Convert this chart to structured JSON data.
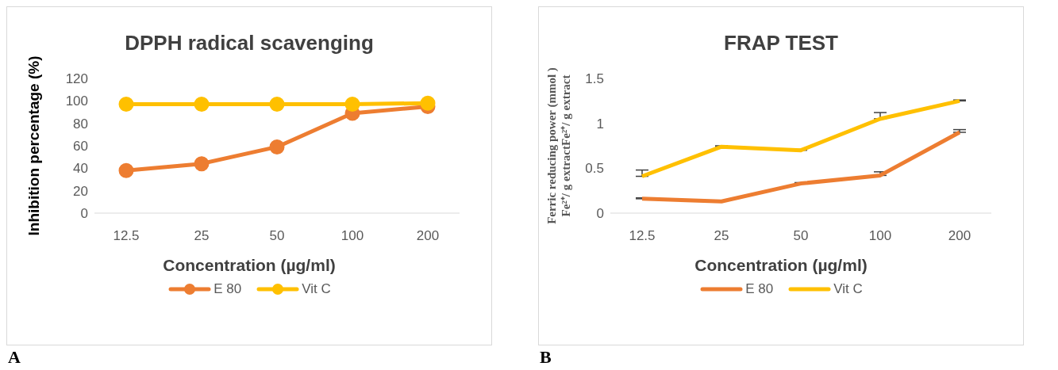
{
  "chart_data": [
    {
      "type": "line",
      "title": "DPPH radical scavenging",
      "xlabel": "Concentration (µg/ml)",
      "ylabel": "Inhibition percentage (%)",
      "categories": [
        "12.5",
        "25",
        "50",
        "100",
        "200"
      ],
      "series": [
        {
          "name": "E 80",
          "color": "#ed7d31",
          "values": [
            38,
            44,
            59,
            89,
            95
          ]
        },
        {
          "name": "Vit C",
          "color": "#ffc000",
          "values": [
            97,
            97,
            97,
            97,
            98
          ]
        }
      ],
      "ylim": [
        0,
        120
      ],
      "yticks": [
        0,
        20,
        40,
        60,
        80,
        100,
        120
      ],
      "marker": "circle",
      "legend": "bottom",
      "annotations": [
        "A"
      ]
    },
    {
      "type": "line",
      "title": "FRAP TEST",
      "xlabel": "Concentration (µg/ml)",
      "ylabel": "Ferric reducing  power (mmol )\nFe²⁺/ g extractFe²⁺/ g extract",
      "categories": [
        "12.5",
        "25",
        "50",
        "100",
        "200"
      ],
      "series": [
        {
          "name": "E 80",
          "color": "#ed7d31",
          "values": [
            0.16,
            0.13,
            0.33,
            0.42,
            0.9
          ],
          "errors": [
            [
              0.16,
              0.17
            ],
            null,
            [
              0.33,
              0.34
            ],
            [
              0.42,
              0.46
            ],
            [
              0.9,
              0.93
            ]
          ]
        },
        {
          "name": "Vit C",
          "color": "#ffc000",
          "values": [
            0.41,
            0.74,
            0.7,
            1.05,
            1.25
          ],
          "errors": [
            [
              0.41,
              0.48
            ],
            [
              0.74,
              0.75
            ],
            [
              0.7,
              0.71
            ],
            [
              1.05,
              1.12
            ],
            [
              1.25,
              1.26
            ]
          ]
        }
      ],
      "ylim": [
        0,
        1.5
      ],
      "yticks": [
        0,
        0.5,
        1,
        1.5
      ],
      "marker": "none",
      "legend": "bottom",
      "annotations": [
        "B"
      ]
    }
  ]
}
